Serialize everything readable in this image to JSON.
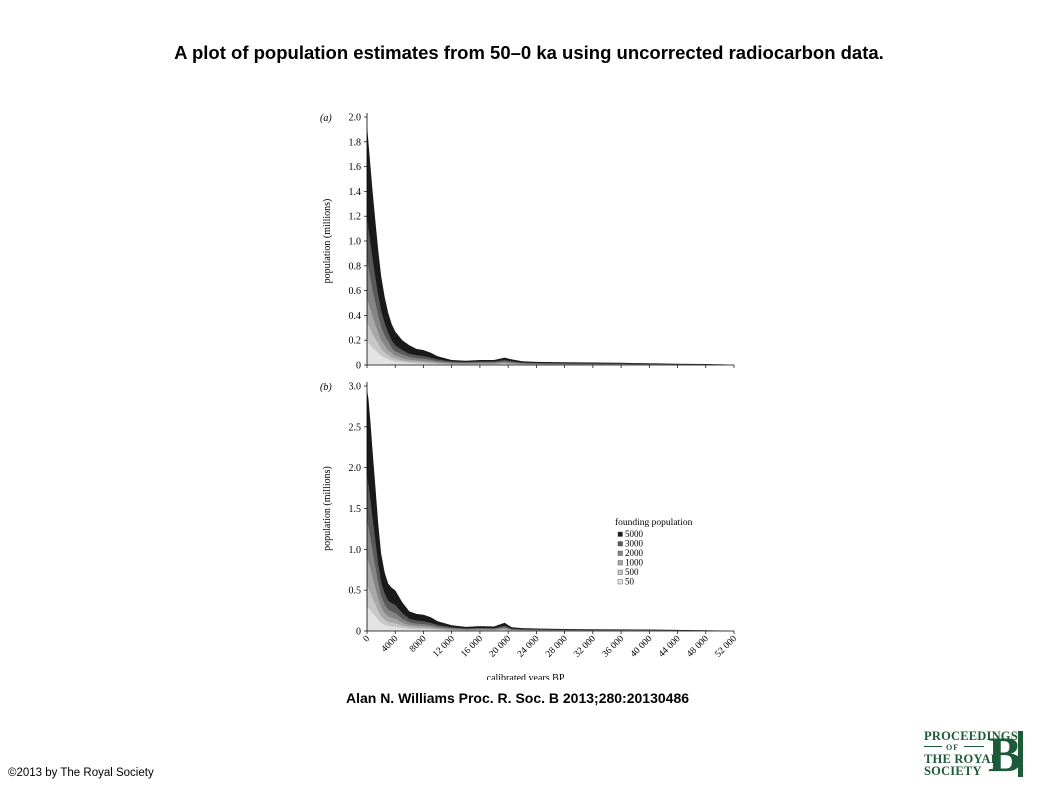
{
  "slide": {
    "title": "A plot of population estimates from 50–0 ka using uncorrected radiocarbon data.",
    "citation": "Alan N. Williams Proc. R. Soc. B 2013;280:20130486",
    "copyright": "©2013 by The Royal Society"
  },
  "logo": {
    "line1": "PROCEEDINGS",
    "line2": "OF",
    "line3": "THE ROYAL",
    "line4": "SOCIETY",
    "letter": "B",
    "color": "#1d5a3a"
  },
  "chart_data": [
    {
      "type": "area",
      "panel_label": "(a)",
      "ylabel": "population (millions)",
      "xlabel": "",
      "xlim": [
        0,
        52000
      ],
      "ylim": [
        0,
        2.0
      ],
      "yticks": [
        0,
        0.2,
        0.4,
        0.6,
        0.8,
        1.0,
        1.2,
        1.4,
        1.6,
        1.8,
        2.0
      ],
      "ytick_labels": [
        "0",
        "0.2",
        "0.4",
        "0.6",
        "0.8",
        "1.0",
        "1.2",
        "1.4",
        "1.6",
        "1.8",
        "2.0"
      ],
      "xticks": [
        0,
        4000,
        8000,
        12000,
        16000,
        20000,
        24000,
        28000,
        32000,
        36000,
        40000,
        44000,
        48000,
        52000
      ],
      "x": [
        0,
        200,
        500,
        800,
        1200,
        1600,
        2000,
        2500,
        3000,
        3500,
        4000,
        5000,
        6000,
        7000,
        8000,
        9000,
        10000,
        12000,
        14000,
        16000,
        18000,
        19500,
        20500,
        22000,
        24000,
        28000,
        32000,
        36000,
        40000,
        44000,
        48000,
        51000
      ],
      "series": [
        {
          "name": "5000",
          "color": "#1a1a1a",
          "values": [
            1.93,
            1.8,
            1.6,
            1.4,
            1.15,
            0.92,
            0.72,
            0.55,
            0.42,
            0.33,
            0.27,
            0.2,
            0.16,
            0.13,
            0.12,
            0.1,
            0.07,
            0.04,
            0.035,
            0.04,
            0.04,
            0.06,
            0.045,
            0.03,
            0.025,
            0.022,
            0.02,
            0.018,
            0.014,
            0.01,
            0.008,
            0.004
          ]
        },
        {
          "name": "3000",
          "color": "#595959",
          "values": [
            1.2,
            1.1,
            0.98,
            0.86,
            0.7,
            0.56,
            0.44,
            0.34,
            0.26,
            0.2,
            0.16,
            0.12,
            0.09,
            0.08,
            0.07,
            0.06,
            0.045,
            0.028,
            0.024,
            0.028,
            0.028,
            0.04,
            0.03,
            0.02,
            0.016,
            0.014,
            0.012,
            0.011,
            0.009,
            0.006,
            0.005,
            0.002
          ]
        },
        {
          "name": "2000",
          "color": "#858585",
          "values": [
            0.85,
            0.78,
            0.7,
            0.6,
            0.5,
            0.4,
            0.31,
            0.24,
            0.19,
            0.14,
            0.11,
            0.085,
            0.065,
            0.055,
            0.05,
            0.042,
            0.03,
            0.02,
            0.017,
            0.02,
            0.02,
            0.028,
            0.021,
            0.014,
            0.011,
            0.009,
            0.008,
            0.007,
            0.006,
            0.004,
            0.003,
            0.001
          ]
        },
        {
          "name": "1000",
          "color": "#a8a8a8",
          "values": [
            0.55,
            0.5,
            0.45,
            0.39,
            0.32,
            0.26,
            0.2,
            0.16,
            0.12,
            0.095,
            0.075,
            0.055,
            0.042,
            0.036,
            0.032,
            0.027,
            0.02,
            0.013,
            0.011,
            0.013,
            0.013,
            0.018,
            0.014,
            0.009,
            0.007,
            0.006,
            0.005,
            0.005,
            0.004,
            0.003,
            0.002,
            0.001
          ]
        },
        {
          "name": "500",
          "color": "#c7c7c7",
          "values": [
            0.35,
            0.32,
            0.29,
            0.25,
            0.21,
            0.17,
            0.13,
            0.1,
            0.08,
            0.06,
            0.048,
            0.035,
            0.027,
            0.023,
            0.02,
            0.017,
            0.013,
            0.008,
            0.007,
            0.008,
            0.008,
            0.011,
            0.009,
            0.006,
            0.004,
            0.004,
            0.003,
            0.003,
            0.002,
            0.002,
            0.001,
            0.0005
          ]
        },
        {
          "name": "50",
          "color": "#e3e3e3",
          "values": [
            0.2,
            0.18,
            0.16,
            0.14,
            0.12,
            0.095,
            0.075,
            0.058,
            0.045,
            0.035,
            0.028,
            0.02,
            0.016,
            0.013,
            0.011,
            0.009,
            0.007,
            0.004,
            0.004,
            0.004,
            0.004,
            0.006,
            0.005,
            0.003,
            0.002,
            0.002,
            0.002,
            0.002,
            0.001,
            0.001,
            0.0005,
            0.0002
          ]
        }
      ]
    },
    {
      "type": "area",
      "panel_label": "(b)",
      "ylabel": "population (millions)",
      "xlabel": "calibrated years BP",
      "xlim": [
        0,
        52000
      ],
      "ylim": [
        0,
        3.0
      ],
      "yticks": [
        0,
        0.5,
        1.0,
        1.5,
        2.0,
        2.5,
        3.0
      ],
      "ytick_labels": [
        "0",
        "0.5",
        "1.0",
        "1.5",
        "2.0",
        "2.5",
        "3.0"
      ],
      "xticks": [
        0,
        4000,
        8000,
        12000,
        16000,
        20000,
        24000,
        28000,
        32000,
        36000,
        40000,
        44000,
        48000,
        52000
      ],
      "xtick_labels": [
        "0",
        "4000",
        "8000",
        "12 000",
        "16 000",
        "20 000",
        "24 000",
        "28 000",
        "32 000",
        "36 000",
        "40 000",
        "44 000",
        "48 000",
        "52 000"
      ],
      "legend": {
        "title": "founding population",
        "position": "right",
        "entries": [
          "5000",
          "3000",
          "2000",
          "1000",
          "500",
          "50"
        ]
      },
      "x": [
        0,
        200,
        500,
        800,
        1200,
        1600,
        2000,
        2500,
        3000,
        3500,
        4000,
        5000,
        6000,
        7000,
        8000,
        9000,
        10000,
        12000,
        14000,
        16000,
        18000,
        19500,
        20500,
        22000,
        24000,
        28000,
        32000,
        36000,
        40000,
        44000,
        48000,
        51000
      ],
      "series": [
        {
          "name": "5000",
          "color": "#1a1a1a",
          "values": [
            2.95,
            2.85,
            2.55,
            2.2,
            1.75,
            1.3,
            0.95,
            0.72,
            0.58,
            0.53,
            0.5,
            0.35,
            0.24,
            0.21,
            0.2,
            0.17,
            0.12,
            0.07,
            0.05,
            0.06,
            0.055,
            0.1,
            0.045,
            0.035,
            0.03,
            0.025,
            0.022,
            0.02,
            0.018,
            0.013,
            0.01,
            0.005
          ]
        },
        {
          "name": "3000",
          "color": "#595959",
          "values": [
            1.9,
            1.8,
            1.6,
            1.38,
            1.1,
            0.82,
            0.6,
            0.46,
            0.37,
            0.34,
            0.32,
            0.22,
            0.15,
            0.13,
            0.12,
            0.1,
            0.075,
            0.045,
            0.032,
            0.038,
            0.035,
            0.065,
            0.028,
            0.022,
            0.019,
            0.016,
            0.014,
            0.013,
            0.011,
            0.008,
            0.006,
            0.003
          ]
        },
        {
          "name": "2000",
          "color": "#858585",
          "values": [
            1.35,
            1.28,
            1.14,
            0.98,
            0.78,
            0.58,
            0.43,
            0.33,
            0.26,
            0.24,
            0.22,
            0.15,
            0.105,
            0.09,
            0.085,
            0.072,
            0.053,
            0.032,
            0.022,
            0.027,
            0.025,
            0.045,
            0.02,
            0.016,
            0.013,
            0.011,
            0.01,
            0.009,
            0.008,
            0.006,
            0.004,
            0.002
          ]
        },
        {
          "name": "1000",
          "color": "#a8a8a8",
          "values": [
            0.9,
            0.85,
            0.76,
            0.65,
            0.52,
            0.39,
            0.29,
            0.22,
            0.18,
            0.16,
            0.15,
            0.1,
            0.07,
            0.062,
            0.058,
            0.049,
            0.036,
            0.022,
            0.015,
            0.018,
            0.017,
            0.03,
            0.013,
            0.011,
            0.009,
            0.007,
            0.006,
            0.006,
            0.005,
            0.004,
            0.003,
            0.001
          ]
        },
        {
          "name": "500",
          "color": "#c7c7c7",
          "values": [
            0.55,
            0.52,
            0.46,
            0.4,
            0.32,
            0.24,
            0.18,
            0.14,
            0.11,
            0.1,
            0.095,
            0.065,
            0.045,
            0.039,
            0.036,
            0.031,
            0.022,
            0.014,
            0.009,
            0.011,
            0.01,
            0.019,
            0.008,
            0.007,
            0.006,
            0.005,
            0.004,
            0.004,
            0.003,
            0.002,
            0.002,
            0.001
          ]
        },
        {
          "name": "50",
          "color": "#e3e3e3",
          "values": [
            0.3,
            0.28,
            0.25,
            0.22,
            0.18,
            0.13,
            0.1,
            0.075,
            0.06,
            0.055,
            0.05,
            0.035,
            0.024,
            0.021,
            0.019,
            0.016,
            0.012,
            0.007,
            0.005,
            0.006,
            0.006,
            0.01,
            0.004,
            0.004,
            0.003,
            0.002,
            0.002,
            0.002,
            0.002,
            0.001,
            0.001,
            0.0005
          ]
        }
      ]
    }
  ]
}
